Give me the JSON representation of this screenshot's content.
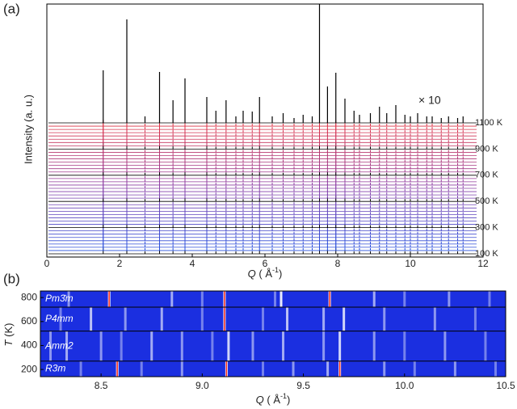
{
  "chart_data": [
    {
      "type": "stacked-pattern",
      "panel_label": "(a)",
      "ylabel": "Intensity (a. u.)",
      "xlabel": "Q",
      "xlabel_unit": "( Å",
      "xlabel_exponent": "-1",
      "xlabel_close": ")",
      "xlim": [
        0,
        12
      ],
      "xticks": [
        0,
        2,
        4,
        6,
        8,
        10,
        12
      ],
      "annotation": "× 10",
      "temperature_labels": [
        "1100 K",
        "900 K",
        "700 K",
        "500 K",
        "300 K",
        "100 K"
      ],
      "peaks": {
        "q": [
          1.55,
          2.2,
          2.7,
          3.1,
          3.47,
          3.8,
          4.4,
          4.65,
          4.93,
          5.2,
          5.4,
          5.65,
          5.85,
          6.2,
          6.5,
          6.8,
          7.05,
          7.3,
          7.5,
          7.72,
          7.95,
          8.2,
          8.45,
          8.6,
          8.9,
          9.15,
          9.35,
          9.6,
          9.85,
          10.0,
          10.2,
          10.45,
          10.6,
          10.85,
          11.05,
          11.3,
          11.45
        ],
        "intensity": [
          65,
          128,
          8,
          63,
          28,
          55,
          32,
          15,
          28,
          8,
          15,
          14,
          32,
          8,
          12,
          6,
          10,
          8,
          147,
          45,
          62,
          30,
          15,
          10,
          12,
          20,
          12,
          22,
          10,
          8,
          12,
          8,
          8,
          6,
          8,
          6,
          8
        ]
      },
      "colors": {
        "low": "#2050e0",
        "mid": "#8a40a8",
        "high": "#e03040",
        "marker": "#000000"
      }
    },
    {
      "type": "heatmap",
      "panel_label": "(b)",
      "ylabel": "T",
      "ylabel_unit": "(K)",
      "xlabel": "Q",
      "xlabel_unit": "( Å",
      "xlabel_exponent": "-1",
      "xlabel_close": ")",
      "xlim": [
        8.2,
        10.5
      ],
      "xticks": [
        8.5,
        {
          "value": 9,
          "label": "9.0"
        },
        9.5,
        {
          "value": 10,
          "label": "10.0"
        },
        10.5
      ],
      "ylim": [
        140,
        855
      ],
      "yticks": [
        200,
        400,
        600,
        800
      ],
      "phase_boundaries": [
        720,
        520,
        270
      ],
      "background": "#1b2fe0",
      "phases": [
        {
          "name": "Pm3̄m",
          "q": [
            8.34,
            8.54,
            8.85,
            9.0,
            9.11,
            9.36,
            9.39,
            9.63,
            9.85,
            10.0,
            10.22,
            10.42
          ],
          "intensity": [
            0.5,
            1,
            0.6,
            0.4,
            1,
            0.4,
            0.9,
            1,
            0.6,
            0.4,
            0.5,
            0.4
          ]
        },
        {
          "name": "P4mm",
          "q": [
            8.3,
            8.45,
            8.62,
            8.8,
            9.0,
            9.11,
            9.3,
            9.42,
            9.6,
            9.7,
            9.9,
            10.15,
            10.35
          ],
          "intensity": [
            0.4,
            0.7,
            0.5,
            0.6,
            0.4,
            0.95,
            0.4,
            0.7,
            0.6,
            0.8,
            0.5,
            0.5,
            0.4
          ]
        },
        {
          "name": "Amm2",
          "q": [
            8.25,
            8.33,
            8.5,
            8.6,
            8.75,
            8.9,
            9.05,
            9.13,
            9.25,
            9.4,
            9.6,
            9.68,
            9.85,
            10.0,
            10.2,
            10.4
          ],
          "intensity": [
            0.5,
            0.6,
            0.5,
            0.4,
            0.6,
            0.5,
            0.4,
            0.8,
            0.5,
            0.6,
            0.5,
            0.8,
            0.5,
            0.4,
            0.5,
            0.4
          ]
        },
        {
          "name": "R3m",
          "q": [
            8.4,
            8.58,
            8.7,
            8.9,
            9.12,
            9.3,
            9.45,
            9.62,
            9.68,
            9.9,
            10.05,
            10.25,
            10.45
          ],
          "intensity": [
            0.4,
            1,
            0.4,
            0.5,
            1,
            0.4,
            0.5,
            0.6,
            1,
            0.5,
            0.4,
            0.5,
            0.4
          ]
        }
      ]
    }
  ]
}
